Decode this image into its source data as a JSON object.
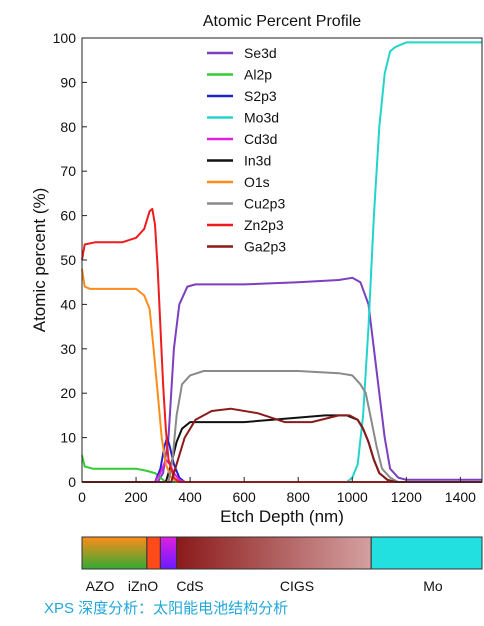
{
  "chart_data": {
    "type": "line",
    "title": "Atomic Percent Profile",
    "xlabel": "Etch Depth (nm)",
    "ylabel": "Atomic percent (%)",
    "xlim": [
      0,
      1480
    ],
    "ylim": [
      0,
      100
    ],
    "xticks": [
      0,
      200,
      400,
      600,
      800,
      1000,
      1200,
      1400
    ],
    "yticks": [
      0,
      10,
      20,
      30,
      40,
      50,
      60,
      70,
      80,
      90,
      100
    ],
    "legend_position": "top-center",
    "series": [
      {
        "name": "Se3d",
        "color": "#7b3fbf",
        "points": [
          [
            0,
            0
          ],
          [
            280,
            0
          ],
          [
            300,
            2
          ],
          [
            320,
            10
          ],
          [
            340,
            30
          ],
          [
            360,
            40
          ],
          [
            390,
            44
          ],
          [
            420,
            44.5
          ],
          [
            600,
            44.5
          ],
          [
            800,
            45
          ],
          [
            950,
            45.5
          ],
          [
            1000,
            46
          ],
          [
            1030,
            45
          ],
          [
            1060,
            40
          ],
          [
            1080,
            30
          ],
          [
            1100,
            20
          ],
          [
            1120,
            10
          ],
          [
            1140,
            3
          ],
          [
            1170,
            1
          ],
          [
            1200,
            0.5
          ],
          [
            1480,
            0.5
          ]
        ]
      },
      {
        "name": "Al2p",
        "color": "#33cc33",
        "points": [
          [
            0,
            6
          ],
          [
            10,
            3.5
          ],
          [
            40,
            3
          ],
          [
            200,
            3
          ],
          [
            240,
            2.5
          ],
          [
            270,
            2
          ],
          [
            290,
            1
          ],
          [
            310,
            0
          ],
          [
            1480,
            0
          ]
        ]
      },
      {
        "name": "S2p3",
        "color": "#2222cc",
        "points": [
          [
            0,
            0
          ],
          [
            270,
            0
          ],
          [
            290,
            3
          ],
          [
            305,
            8
          ],
          [
            315,
            10
          ],
          [
            325,
            8
          ],
          [
            340,
            4
          ],
          [
            360,
            1
          ],
          [
            380,
            0
          ],
          [
            1480,
            0
          ]
        ]
      },
      {
        "name": "Mo3d",
        "color": "#22d4cc",
        "points": [
          [
            0,
            0
          ],
          [
            980,
            0
          ],
          [
            1000,
            1
          ],
          [
            1020,
            4
          ],
          [
            1040,
            15
          ],
          [
            1060,
            35
          ],
          [
            1080,
            60
          ],
          [
            1100,
            80
          ],
          [
            1120,
            92
          ],
          [
            1140,
            97
          ],
          [
            1160,
            98
          ],
          [
            1200,
            99
          ],
          [
            1480,
            99
          ]
        ]
      },
      {
        "name": "Cd3d",
        "color": "#e020e0",
        "points": [
          [
            0,
            0
          ],
          [
            270,
            0
          ],
          [
            290,
            2
          ],
          [
            310,
            5
          ],
          [
            325,
            4
          ],
          [
            340,
            2
          ],
          [
            360,
            0.5
          ],
          [
            380,
            0
          ],
          [
            1480,
            0
          ]
        ]
      },
      {
        "name": "In3d",
        "color": "#111111",
        "points": [
          [
            0,
            0
          ],
          [
            310,
            0
          ],
          [
            330,
            4
          ],
          [
            350,
            9
          ],
          [
            370,
            12
          ],
          [
            400,
            13.5
          ],
          [
            450,
            13.5
          ],
          [
            600,
            13.5
          ],
          [
            800,
            14.5
          ],
          [
            900,
            15
          ],
          [
            980,
            15
          ],
          [
            1020,
            14
          ],
          [
            1040,
            12
          ],
          [
            1060,
            9
          ],
          [
            1080,
            5
          ],
          [
            1100,
            2
          ],
          [
            1130,
            0.5
          ],
          [
            1160,
            0
          ],
          [
            1480,
            0
          ]
        ]
      },
      {
        "name": "O1s",
        "color": "#ff8c1a",
        "points": [
          [
            0,
            48
          ],
          [
            10,
            44
          ],
          [
            30,
            43.5
          ],
          [
            200,
            43.5
          ],
          [
            230,
            42
          ],
          [
            250,
            39
          ],
          [
            265,
            30
          ],
          [
            280,
            20
          ],
          [
            295,
            10
          ],
          [
            310,
            4
          ],
          [
            330,
            1
          ],
          [
            350,
            0
          ],
          [
            1480,
            0
          ]
        ]
      },
      {
        "name": "Cu2p3",
        "color": "#8a8a8a",
        "points": [
          [
            0,
            0
          ],
          [
            320,
            0
          ],
          [
            335,
            5
          ],
          [
            350,
            15
          ],
          [
            370,
            22
          ],
          [
            400,
            24
          ],
          [
            450,
            25
          ],
          [
            600,
            25
          ],
          [
            800,
            25
          ],
          [
            950,
            24.5
          ],
          [
            1000,
            24
          ],
          [
            1030,
            22
          ],
          [
            1050,
            20
          ],
          [
            1070,
            14
          ],
          [
            1090,
            8
          ],
          [
            1110,
            3
          ],
          [
            1140,
            1
          ],
          [
            1170,
            0
          ],
          [
            1480,
            0
          ]
        ]
      },
      {
        "name": "Zn2p3",
        "color": "#ee1c1c",
        "points": [
          [
            0,
            50
          ],
          [
            10,
            53.5
          ],
          [
            50,
            54
          ],
          [
            150,
            54
          ],
          [
            200,
            55
          ],
          [
            230,
            57
          ],
          [
            250,
            61
          ],
          [
            260,
            61.5
          ],
          [
            270,
            58
          ],
          [
            280,
            48
          ],
          [
            290,
            35
          ],
          [
            300,
            22
          ],
          [
            310,
            12
          ],
          [
            320,
            5
          ],
          [
            340,
            1
          ],
          [
            360,
            0
          ],
          [
            1480,
            0
          ]
        ]
      },
      {
        "name": "Ga2p3",
        "color": "#8b1a1a",
        "points": [
          [
            0,
            0
          ],
          [
            330,
            0
          ],
          [
            350,
            4
          ],
          [
            380,
            10
          ],
          [
            420,
            14
          ],
          [
            480,
            16
          ],
          [
            550,
            16.5
          ],
          [
            650,
            15.5
          ],
          [
            750,
            13.5
          ],
          [
            850,
            13.5
          ],
          [
            950,
            15
          ],
          [
            990,
            15
          ],
          [
            1020,
            14
          ],
          [
            1040,
            12
          ],
          [
            1060,
            9
          ],
          [
            1080,
            5
          ],
          [
            1100,
            2
          ],
          [
            1130,
            0.5
          ],
          [
            1160,
            0
          ],
          [
            1480,
            0
          ]
        ]
      }
    ]
  },
  "layer_bar": {
    "segments": [
      {
        "label": "AZO",
        "start": 0,
        "end": 240,
        "colors": [
          "#ff8c1a",
          "#33aa33"
        ]
      },
      {
        "label": "iZnO",
        "start": 240,
        "end": 290,
        "colors": [
          "#ff4a1a",
          "#ff4a1a"
        ]
      },
      {
        "label": "CdS",
        "start": 290,
        "end": 350,
        "colors": [
          "#e020e0",
          "#6a1aff"
        ]
      },
      {
        "label": "CIGS",
        "start": 350,
        "end": 1070,
        "colors": [
          "#8b1a1a",
          "#d4a0a0"
        ]
      },
      {
        "label": "Mo",
        "start": 1070,
        "end": 1480,
        "colors": [
          "#22e0e0",
          "#22e0e0"
        ]
      }
    ]
  },
  "caption": "XPS 深度分析：太阳能电池结构分析"
}
